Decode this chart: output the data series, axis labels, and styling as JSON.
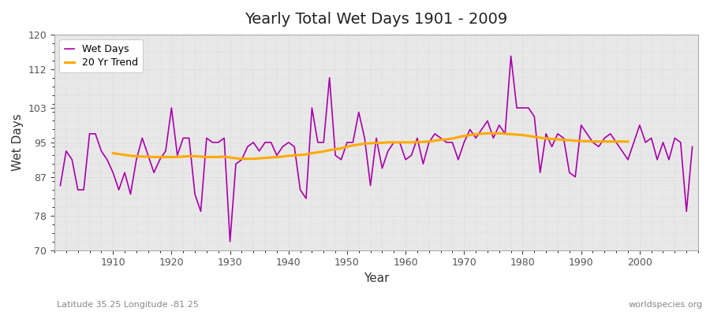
{
  "title": "Yearly Total Wet Days 1901 - 2009",
  "xlabel": "Year",
  "ylabel": "Wet Days",
  "subtitle_left": "Latitude 35.25 Longitude -81.25",
  "subtitle_right": "worldspecies.org",
  "line_color": "#aa00aa",
  "trend_color": "#ffaa00",
  "plot_bg_color": "#e8e8e8",
  "fig_bg_color": "#ffffff",
  "ylim": [
    70,
    120
  ],
  "yticks": [
    70,
    78,
    87,
    95,
    103,
    112,
    120
  ],
  "xlim": [
    1900,
    2010
  ],
  "xticks": [
    1910,
    1920,
    1930,
    1940,
    1950,
    1960,
    1970,
    1980,
    1990,
    2000
  ],
  "years": [
    1901,
    1902,
    1903,
    1904,
    1905,
    1906,
    1907,
    1908,
    1909,
    1910,
    1911,
    1912,
    1913,
    1914,
    1915,
    1916,
    1917,
    1918,
    1919,
    1920,
    1921,
    1922,
    1923,
    1924,
    1925,
    1926,
    1927,
    1928,
    1929,
    1930,
    1931,
    1932,
    1933,
    1934,
    1935,
    1936,
    1937,
    1938,
    1939,
    1940,
    1941,
    1942,
    1943,
    1944,
    1945,
    1946,
    1947,
    1948,
    1949,
    1950,
    1951,
    1952,
    1953,
    1954,
    1955,
    1956,
    1957,
    1958,
    1959,
    1960,
    1961,
    1962,
    1963,
    1964,
    1965,
    1966,
    1967,
    1968,
    1969,
    1970,
    1971,
    1972,
    1973,
    1974,
    1975,
    1976,
    1977,
    1978,
    1979,
    1980,
    1981,
    1982,
    1983,
    1984,
    1985,
    1986,
    1987,
    1988,
    1989,
    1990,
    1991,
    1992,
    1993,
    1994,
    1995,
    1996,
    1997,
    1998,
    1999,
    2000,
    2001,
    2002,
    2003,
    2004,
    2005,
    2006,
    2007,
    2008,
    2009
  ],
  "wet_days": [
    85,
    93,
    91,
    84,
    84,
    97,
    97,
    93,
    91,
    88,
    84,
    88,
    83,
    91,
    96,
    92,
    88,
    91,
    93,
    103,
    92,
    96,
    96,
    83,
    79,
    96,
    95,
    95,
    96,
    72,
    90,
    91,
    94,
    95,
    93,
    95,
    95,
    92,
    94,
    95,
    94,
    84,
    82,
    103,
    95,
    95,
    110,
    92,
    91,
    95,
    95,
    102,
    96,
    85,
    96,
    89,
    93,
    95,
    95,
    91,
    92,
    96,
    90,
    95,
    97,
    96,
    95,
    95,
    91,
    95,
    98,
    96,
    98,
    100,
    96,
    99,
    97,
    115,
    103,
    103,
    103,
    101,
    88,
    97,
    94,
    97,
    96,
    88,
    87,
    99,
    97,
    95,
    94,
    96,
    97,
    95,
    93,
    91,
    95,
    99,
    95,
    96,
    91,
    95,
    91,
    96,
    95,
    79,
    94
  ],
  "trend": [
    null,
    null,
    null,
    null,
    null,
    null,
    null,
    null,
    null,
    92.5,
    92.3,
    92.1,
    91.9,
    91.8,
    91.7,
    91.7,
    91.6,
    91.6,
    91.6,
    91.6,
    91.6,
    91.7,
    91.8,
    91.8,
    91.7,
    91.6,
    91.6,
    91.6,
    91.7,
    91.5,
    91.3,
    91.2,
    91.2,
    91.2,
    91.3,
    91.4,
    91.5,
    91.6,
    91.7,
    91.9,
    92.0,
    92.1,
    92.2,
    92.5,
    92.7,
    92.9,
    93.2,
    93.4,
    93.6,
    94.0,
    94.3,
    94.5,
    94.7,
    94.8,
    94.9,
    94.9,
    95.0,
    95.0,
    95.0,
    95.0,
    95.0,
    95.1,
    95.1,
    95.2,
    95.4,
    95.6,
    95.7,
    95.9,
    96.2,
    96.5,
    96.7,
    96.9,
    97.0,
    97.1,
    97.1,
    97.1,
    97.0,
    96.9,
    96.8,
    96.7,
    96.5,
    96.3,
    96.1,
    95.9,
    95.8,
    95.7,
    95.6,
    95.5,
    95.4,
    95.3,
    95.3,
    95.2,
    95.2,
    95.2,
    95.2,
    95.2,
    95.2,
    95.2,
    null,
    null,
    null,
    null,
    null,
    null,
    null,
    null,
    null,
    null,
    null
  ]
}
